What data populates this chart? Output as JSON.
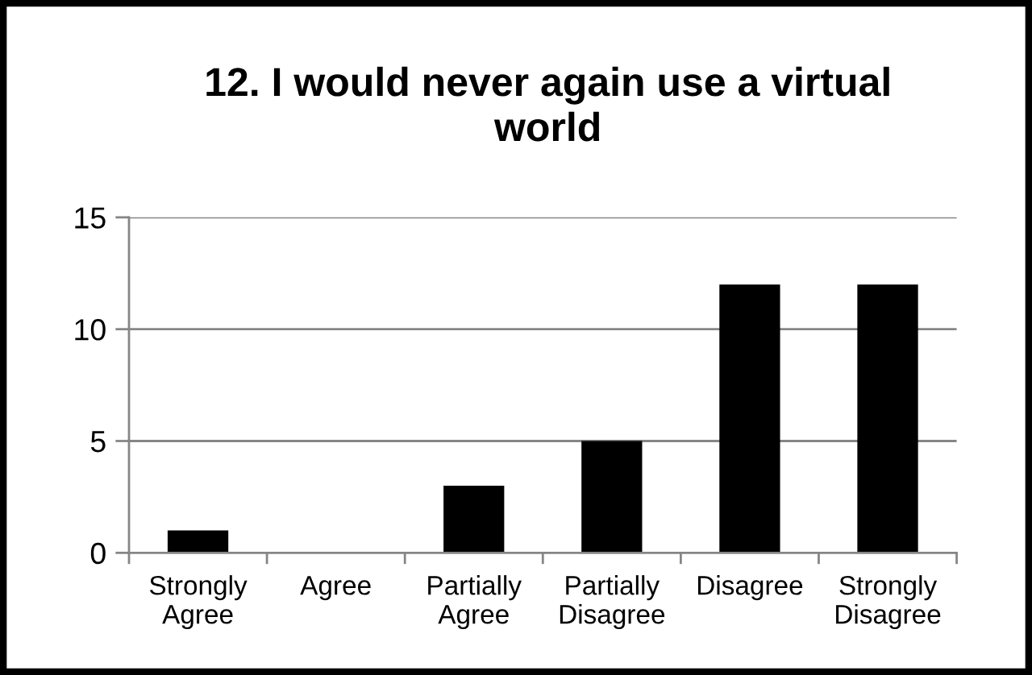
{
  "chart_data": {
    "type": "bar",
    "title": "12. I would never again use a virtual world",
    "categories": [
      "Strongly Agree",
      "Agree",
      "Partially Agree",
      "Partially Disagree",
      "Disagree",
      "Strongly Disagree"
    ],
    "values": [
      1,
      0,
      3,
      5,
      12,
      12
    ],
    "color": "#000000",
    "ylim": [
      0,
      15
    ],
    "yticks": [
      0,
      5,
      10,
      15
    ],
    "grid": "y"
  }
}
